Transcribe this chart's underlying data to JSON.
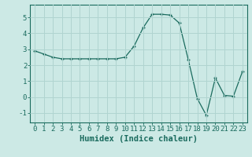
{
  "x": [
    0,
    1,
    2,
    3,
    4,
    5,
    6,
    7,
    8,
    9,
    10,
    11,
    12,
    13,
    14,
    15,
    16,
    17,
    18,
    19,
    20,
    21,
    22,
    23
  ],
  "y": [
    2.9,
    2.7,
    2.5,
    2.4,
    2.4,
    2.4,
    2.4,
    2.4,
    2.4,
    2.4,
    2.5,
    3.2,
    4.35,
    5.2,
    5.2,
    5.15,
    4.65,
    2.35,
    -0.1,
    -1.15,
    1.2,
    0.1,
    0.05,
    1.6
  ],
  "line_color": "#1a6b5e",
  "marker": "+",
  "marker_size": 3.5,
  "bg_color": "#cce9e5",
  "grid_color": "#b0d4d0",
  "xlabel": "Humidex (Indice chaleur)",
  "xlim": [
    -0.5,
    23.5
  ],
  "ylim": [
    -1.6,
    5.8
  ],
  "yticks": [
    -1,
    0,
    1,
    2,
    3,
    4,
    5
  ],
  "xticks": [
    0,
    1,
    2,
    3,
    4,
    5,
    6,
    7,
    8,
    9,
    10,
    11,
    12,
    13,
    14,
    15,
    16,
    17,
    18,
    19,
    20,
    21,
    22,
    23
  ],
  "tick_label_size": 6.5,
  "xlabel_size": 7.5,
  "spine_color": "#1a6b5e"
}
